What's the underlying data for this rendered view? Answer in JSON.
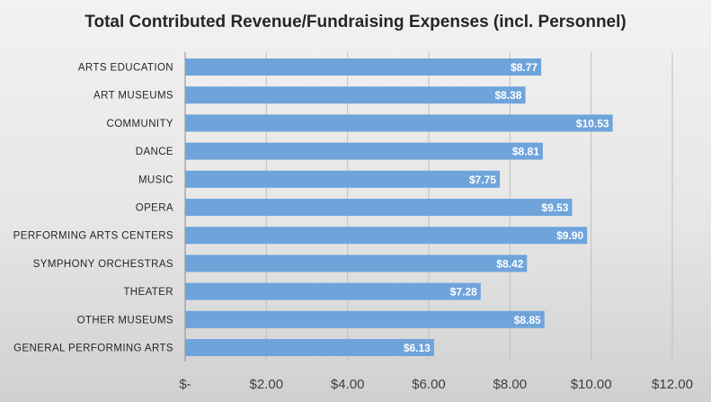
{
  "chart_data": {
    "type": "bar",
    "orientation": "horizontal",
    "title": "Total Contributed Revenue/Fundraising Expenses (incl. Personnel)",
    "categories": [
      "ARTS EDUCATION",
      "ART MUSEUMS",
      "COMMUNITY",
      "DANCE",
      "MUSIC",
      "OPERA",
      "PERFORMING ARTS CENTERS",
      "SYMPHONY ORCHESTRAS",
      "THEATER",
      "OTHER MUSEUMS",
      "GENERAL PERFORMING ARTS"
    ],
    "values": [
      8.77,
      8.38,
      10.53,
      8.81,
      7.75,
      9.53,
      9.9,
      8.42,
      7.28,
      8.85,
      6.13
    ],
    "data_labels": [
      "$8.77",
      "$8.38",
      "$10.53",
      "$8.81",
      "$7.75",
      "$9.53",
      "$9.90",
      "$8.42",
      "$7.28",
      "$8.85",
      "$6.13"
    ],
    "xlim": [
      0,
      12
    ],
    "x_ticks": [
      0,
      2,
      4,
      6,
      8,
      10,
      12
    ],
    "x_tick_labels": [
      "$-",
      "$2.00",
      "$4.00",
      "$6.00",
      "$8.00",
      "$10.00",
      "$12.00"
    ],
    "xlabel": "",
    "ylabel": "",
    "grid": "vertical",
    "legend": "none",
    "bar_color": "#6fa4db"
  }
}
